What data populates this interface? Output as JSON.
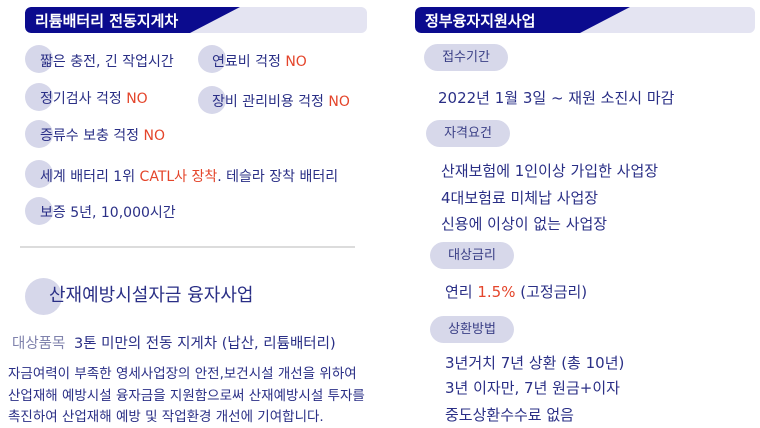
{
  "left": {
    "header": "리튬배터리 전동지게차",
    "features": [
      {
        "text": "짧은 충전, 긴 작업시간",
        "highlight": ""
      },
      {
        "text": "연료비 걱정 ",
        "highlight": "NO"
      },
      {
        "text": "정기검사 걱정 ",
        "highlight": "NO"
      },
      {
        "text": "장비 관리비용 걱정 ",
        "highlight": "NO"
      },
      {
        "text": "증류수 보충 걱정 ",
        "highlight": "NO"
      }
    ],
    "battery": {
      "pre": "세계 배터리 1위 ",
      "highlight": "CATL사 장착",
      "post": ". 테슬라 장착 배터리"
    },
    "warranty": "보증 5년, 10,000시간",
    "program_title": "산재예방시설자금 융자사업",
    "target_label": "대상품목",
    "target_value": "3톤 미만의 전동 지게차 (납산, 리튬배터리)",
    "description": [
      "자금여력이 부족한 영세사업장의 안전,보건시설 개선을 위하여",
      "산업재해 예방시설 융자금을 지원함으로써 산재예방시설 투자를",
      "촉진하여 산업재해 예방 및 작업환경 개선에 기여합니다."
    ]
  },
  "right": {
    "header": "정부융자지원사업",
    "period_label": "접수기간",
    "period_value": "2022년 1월 3일 ~ 재원 소진시 마감",
    "eligibility_label": "자격요건",
    "eligibility": [
      "산재보험에 1인이상 가입한 사업장",
      "4대보험료 미체납 사업장",
      "신용에 이상이 없는 사업장"
    ],
    "rate_label": "대상금리",
    "rate": {
      "pre": "연리 ",
      "highlight": "1.5%",
      "post": " (고정금리)"
    },
    "repayment_label": "상환방법",
    "repayment": [
      "3년거치 7년 상환 (총 10년)",
      "3년 이자만, 7년 원금+이자"
    ],
    "repayment_note": "중도상환수수료 없음"
  },
  "colors": {
    "navy": "#0b0b8e",
    "text": "#2a2f86",
    "accent_red": "#e4452b",
    "pill": "#d7d8ea"
  }
}
